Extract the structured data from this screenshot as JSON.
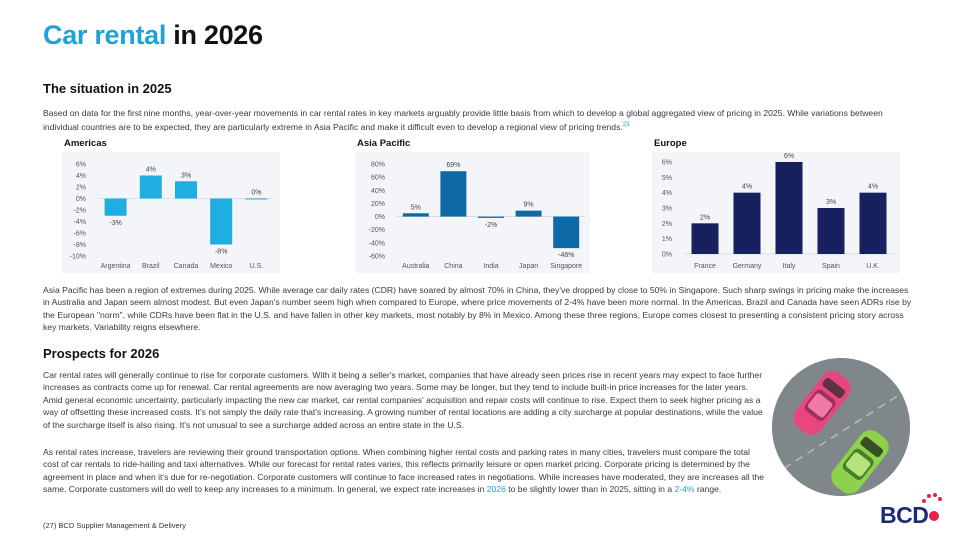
{
  "page": {
    "title_accent": "Car rental",
    "title_rest": " in 2026"
  },
  "situation": {
    "heading": "The situation in 2025",
    "intro": "Based on data for the first nine months, year-over-year movements in car rental rates in key markets arguably provide little basis from which to develop a global aggregated view of pricing in 2025. While variations between individual countries are to be expected, they are particularly extreme in Asia Pacific and make it difficult even to develop a regional view of pricing trends.",
    "intro_ref": "23",
    "analysis": "Asia Pacific has been a region of extremes during 2025. While average car daily rates (CDR) have soared by almost 70% in China, they've dropped by close to 50% in Singapore. Such sharp swings in pricing make the increases in Australia and Japan seem almost modest. But even Japan's number seem high when compared to Europe, where price movements of 2-4% have been more normal. In the Americas, Brazil and Canada have seen ADRs rise by the European \"norm\", while CDRs have been flat in the U.S. and have fallen in other key markets, most notably by 8% in Mexico. Among these three regions, Europe comes closest to presenting a consistent pricing story across key markets. Variability reigns elsewhere."
  },
  "colors": {
    "accent": "#1fa3d6",
    "americas_bar": "#1eaee0",
    "apac_bar": "#0e6aa6",
    "europe_bar": "#16205e",
    "panel_bg": "#f3f5f8",
    "logo_navy": "#1c2a78",
    "logo_red": "#e8204a"
  },
  "chart_data": [
    {
      "type": "bar",
      "title": "Americas",
      "categories": [
        "Argentina",
        "Brazil",
        "Canada",
        "Mexico",
        "U.S."
      ],
      "values": [
        -3,
        4,
        3,
        -8,
        0
      ],
      "data_labels": [
        "-3%",
        "4%",
        "3%",
        "-8%",
        "0%"
      ],
      "ylim": [
        -10,
        6
      ],
      "yticks": [
        6,
        4,
        2,
        0,
        -2,
        -4,
        -6,
        -8,
        -10
      ],
      "ytick_labels": [
        "6%",
        "4%",
        "2%",
        "0%",
        "-2%",
        "-4%",
        "-6%",
        "-8%",
        "-10%"
      ],
      "grid": false,
      "color": "#1eaee0"
    },
    {
      "type": "bar",
      "title": "Asia Pacific",
      "categories": [
        "Australia",
        "China",
        "India",
        "Japan",
        "Singapore"
      ],
      "values": [
        5,
        69,
        -2,
        9,
        -48
      ],
      "data_labels": [
        "5%",
        "69%",
        "-2%",
        "9%",
        "-48%"
      ],
      "ylim": [
        -60,
        80
      ],
      "yticks": [
        80,
        60,
        40,
        20,
        0,
        -20,
        -40,
        -60
      ],
      "ytick_labels": [
        "80%",
        "60%",
        "40%",
        "20%",
        "0%",
        "-20%",
        "-40%",
        "-60%"
      ],
      "grid": false,
      "color": "#0e6aa6"
    },
    {
      "type": "bar",
      "title": "Europe",
      "categories": [
        "France",
        "Germany",
        "Italy",
        "Spain",
        "U.K."
      ],
      "values": [
        2,
        4,
        6,
        3,
        4
      ],
      "data_labels": [
        "2%",
        "4%",
        "6%",
        "3%",
        "4%"
      ],
      "ylim": [
        0,
        6
      ],
      "yticks": [
        6,
        5,
        4,
        3,
        2,
        1,
        0
      ],
      "ytick_labels": [
        "6%",
        "5%",
        "4%",
        "3%",
        "2%",
        "1%",
        "0%"
      ],
      "grid": false,
      "color": "#16205e"
    }
  ],
  "prospects": {
    "heading": "Prospects for 2026",
    "para1": "Car rental rates will generally continue to rise for corporate customers. With it being a seller's market, companies that have already seen prices rise in recent years may expect to face further increases as contracts come up for renewal. Car rental agreements are now averaging two years. Some may be longer, but they tend to include built-in price increases for the later years. Amid general economic uncertainty, particularly impacting the new car market, car rental companies' acquisition and repair costs will continue to rise. Expect them to seek higher pricing as a way of offsetting these increased costs. It's not simply the daily rate that's increasing. A growing number of rental locations are adding a city surcharge at popular destinations, while the value of the surcharge itself is also rising. It's not unusual to see a surcharge added across an entire state in the U.S.",
    "para2_lead": "As rental rates increase, travelers are reviewing their ground transportation options. When combining higher rental costs and parking rates in many cities, travelers must compare the total cost of car rentals to ride-hailing and taxi alternatives. While our forecast for rental rates varies, this reflects primarily leisure or open market pricing. Corporate pricing is determined by the agreement in place and when it's due for re-negotiation. Corporate customers will continue to face increased rates in negotiations. While increases have moderated, they are increases all the same. Corporate customers will do well to keep any increases to a minimum. In general, we expect rate increases in ",
    "para2_year": "2026",
    "para2_mid": " to be slightly lower than in 2025, sitting in a ",
    "para2_range": "2-4%",
    "para2_end": " range."
  },
  "footer": {
    "text": "(27) BCD Supplier Management & Delivery"
  },
  "logo": {
    "text": "BCD",
    "alt": "BCD logo"
  },
  "photo": {
    "subject": "overhead photo of a pink car and a green car"
  }
}
